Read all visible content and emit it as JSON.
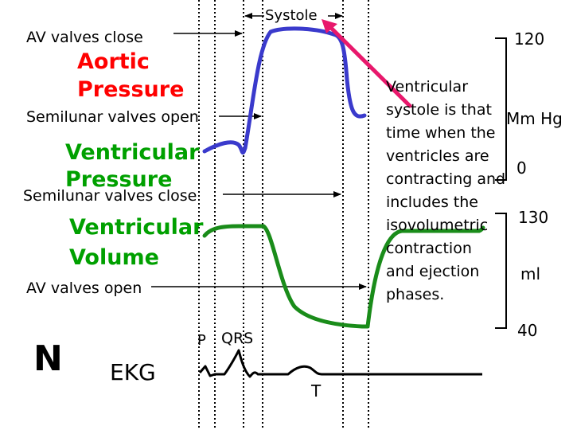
{
  "labels": {
    "av_close": "AV valves close",
    "semilunar_open": "Semilunar valves open",
    "semilunar_close": "Semilunar valves close",
    "av_open": "AV valves open",
    "systole": "Systole",
    "ekg": "EKG",
    "n": "N",
    "p": "P",
    "qrs": "QRS",
    "t": "T"
  },
  "curves": {
    "aortic_pressure": {
      "line1": "Aortic",
      "line2": "Pressure",
      "color": "#ff0000"
    },
    "ventricular_pressure": {
      "line1": "Ventricular",
      "line2": "Pressure",
      "color": "#00a000",
      "curve_color": "#3a3acc"
    },
    "ventricular_volume": {
      "line1": "Ventricular",
      "line2": "Volume",
      "color": "#00a000",
      "curve_color": "#1a8c1a"
    }
  },
  "systole_text": {
    "lines": [
      "Ventricular",
      "systole is that",
      "time when the",
      "ventricles are",
      "contracting and",
      "includes the",
      "isovolumetric",
      "contraction",
      "and ejection",
      "phases."
    ]
  },
  "pressure_scale": {
    "top": "120",
    "unit": "Mm Hg",
    "bottom": "0"
  },
  "volume_scale": {
    "top": "130",
    "unit": "ml",
    "bottom": "40"
  },
  "colors": {
    "arrow": "#e8186c",
    "ekg": "#000000",
    "dotted_line": "#000000"
  }
}
